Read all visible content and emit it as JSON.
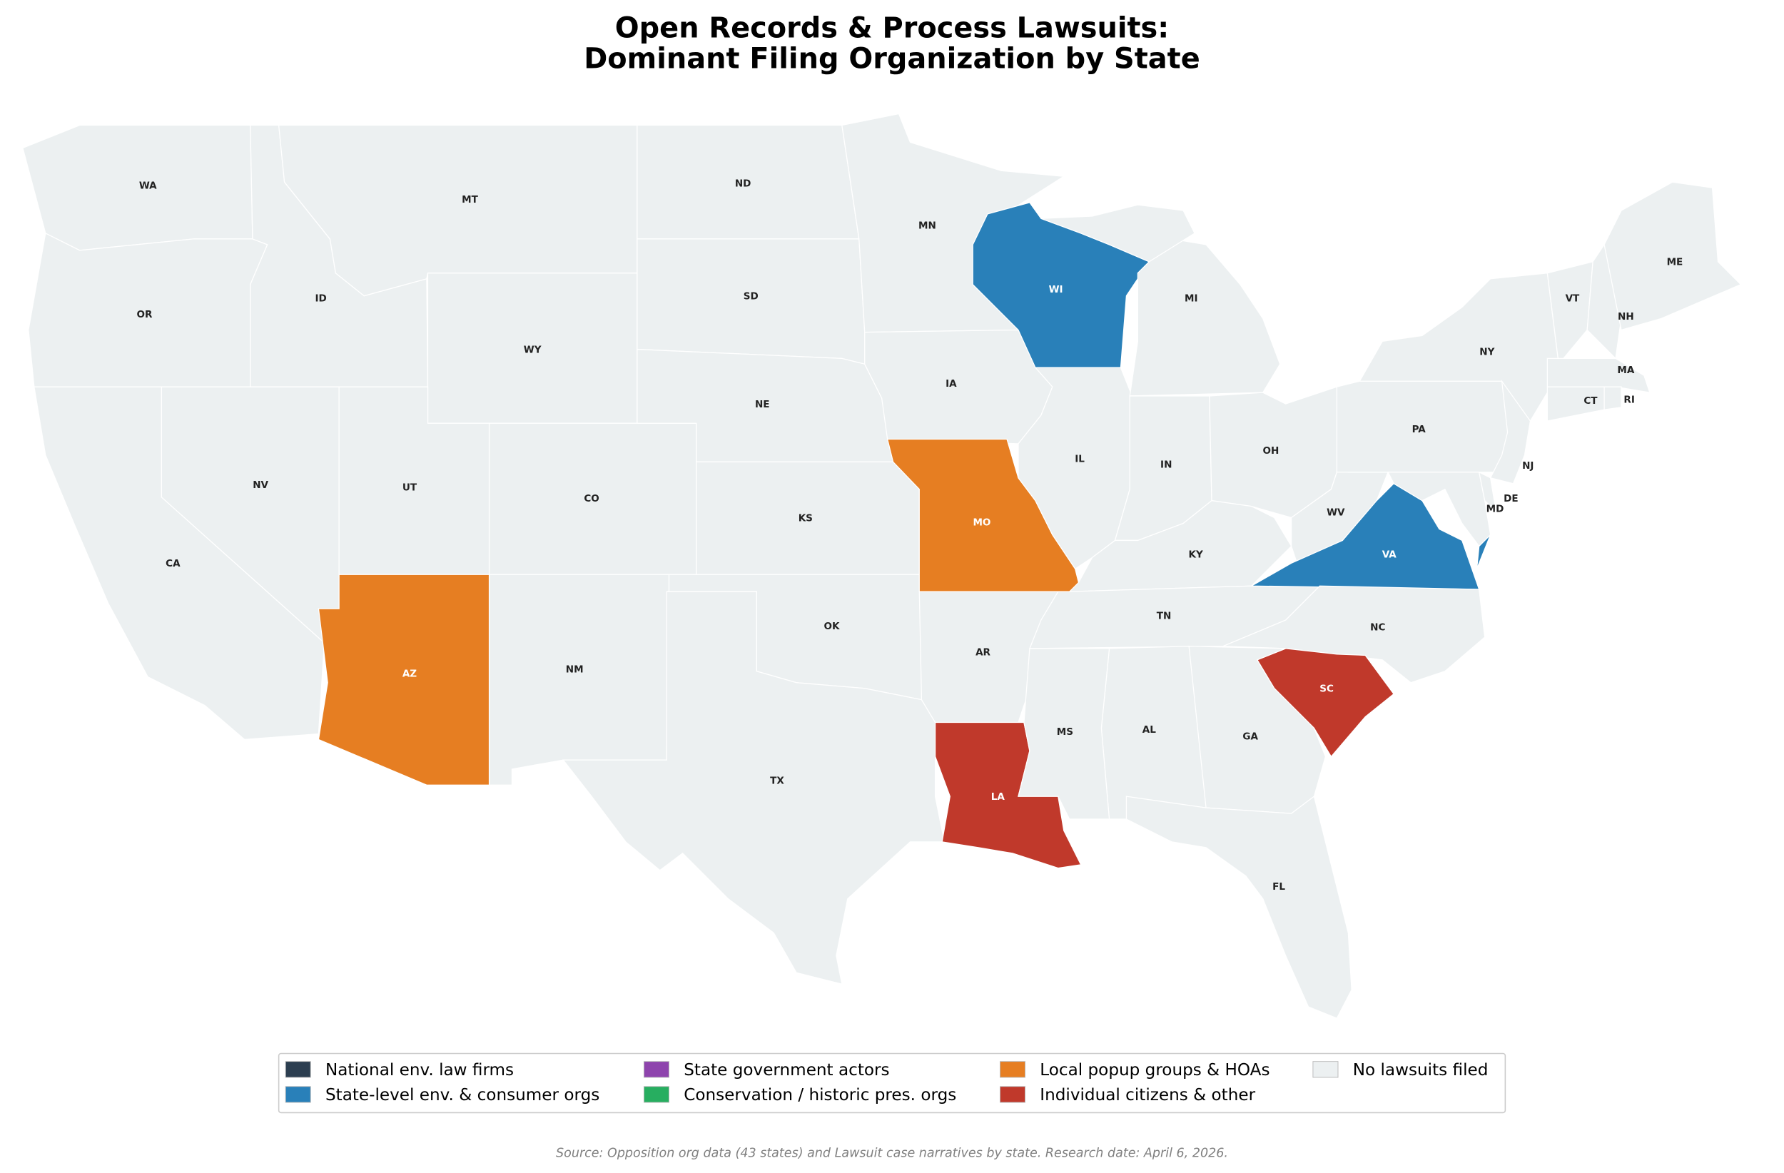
{
  "title_line1": "Open Records & Process Lawsuits:",
  "title_line2": "Dominant Filing Organization by State",
  "categories": [
    {
      "key": "national",
      "label": "National env. law firms",
      "color": "#2c3e50"
    },
    {
      "key": "state_level",
      "label": "State-level env. & consumer orgs",
      "color": "#2980b9"
    },
    {
      "key": "state_gov",
      "label": "State government actors",
      "color": "#8e44ad"
    },
    {
      "key": "conservation",
      "label": "Conservation / historic pres. orgs",
      "color": "#27ae60"
    },
    {
      "key": "local",
      "label": "Local popup groups & HOAs",
      "color": "#e67e22"
    },
    {
      "key": "individual",
      "label": "Individual citizens & other",
      "color": "#c0392b"
    },
    {
      "key": "none",
      "label": "No lawsuits filed",
      "color": "#ecf0f1"
    }
  ],
  "states": {
    "WA": "none",
    "OR": "none",
    "CA": "none",
    "NV": "none",
    "ID": "none",
    "MT": "none",
    "WY": "none",
    "UT": "none",
    "AZ": "local",
    "CO": "none",
    "NM": "none",
    "ND": "none",
    "SD": "none",
    "NE": "none",
    "KS": "none",
    "OK": "none",
    "TX": "none",
    "MN": "none",
    "IA": "none",
    "MO": "local",
    "AR": "none",
    "LA": "individual",
    "WI": "state_level",
    "IL": "none",
    "MI": "none",
    "IN": "none",
    "OH": "none",
    "KY": "none",
    "TN": "none",
    "WV": "none",
    "VA": "state_level",
    "NC": "none",
    "SC": "individual",
    "GA": "none",
    "AL": "none",
    "MS": "none",
    "FL": "none",
    "PA": "none",
    "NY": "none",
    "NJ": "none",
    "MD": "none",
    "DE": "none",
    "VT": "none",
    "NH": "none",
    "ME": "none",
    "MA": "none",
    "CT": "none",
    "RI": "none"
  },
  "source": "Source: Opposition org data (43 states) and Lawsuit case narratives by state. Research date: April 6, 2026."
}
